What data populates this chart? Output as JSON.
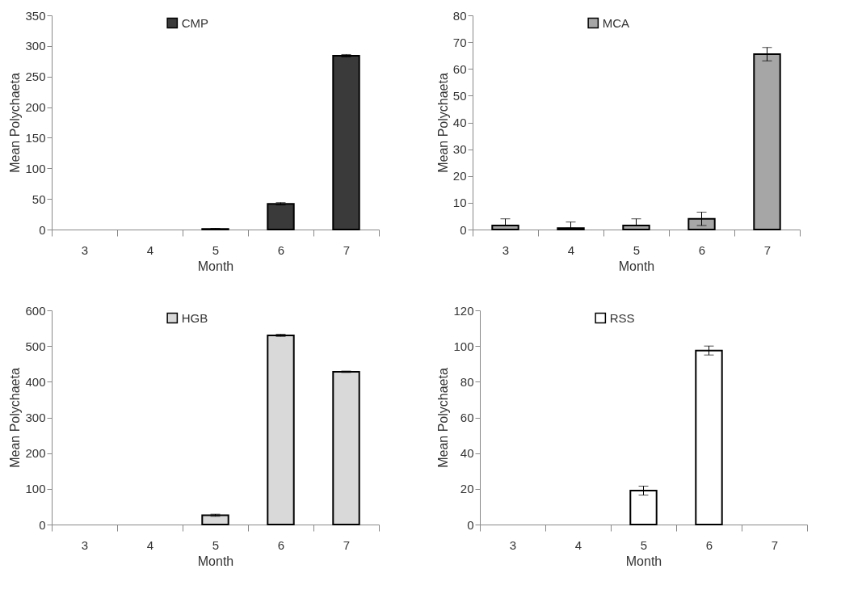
{
  "chart_data": [
    {
      "type": "bar",
      "xlabel": "Month",
      "ylabel": "Mean Polychaeta",
      "categories": [
        "3",
        "4",
        "5",
        "6",
        "7"
      ],
      "series": [
        {
          "name": "CMP",
          "color": "#3a3a3a",
          "values": [
            0,
            0,
            1,
            42,
            284
          ],
          "errors": [
            null,
            null,
            1,
            2,
            2
          ]
        }
      ],
      "ylim": [
        0,
        350
      ],
      "yticks": [
        0,
        50,
        100,
        150,
        200,
        250,
        300,
        350
      ],
      "legend": "top",
      "grid": false
    },
    {
      "type": "bar",
      "xlabel": "Month",
      "ylabel": "Mean Polychaeta",
      "categories": [
        "3",
        "4",
        "5",
        "6",
        "7"
      ],
      "series": [
        {
          "name": "MCA",
          "color": "#a6a6a6",
          "values": [
            1.5,
            0.5,
            1.5,
            4,
            65.5
          ],
          "errors": [
            [
              1.5,
              4
            ],
            [
              0.5,
              2.8
            ],
            [
              1.5,
              4
            ],
            2.5,
            2.5
          ]
        }
      ],
      "ylim": [
        0,
        80
      ],
      "yticks": [
        0,
        10,
        20,
        30,
        40,
        50,
        60,
        70,
        80
      ],
      "legend": "top",
      "grid": false
    },
    {
      "type": "bar",
      "xlabel": "Month",
      "ylabel": "Mean Polychaeta",
      "categories": [
        "3",
        "4",
        "5",
        "6",
        "7"
      ],
      "series": [
        {
          "name": "HGB",
          "color": "#d9d9d9",
          "values": [
            0,
            0,
            26,
            530,
            428
          ],
          "errors": [
            null,
            null,
            3,
            3,
            2
          ]
        }
      ],
      "ylim": [
        0,
        600
      ],
      "yticks": [
        0,
        100,
        200,
        300,
        400,
        500,
        600
      ],
      "legend": "top",
      "grid": false
    },
    {
      "type": "bar",
      "xlabel": "Month",
      "ylabel": "Mean Polychaeta",
      "categories": [
        "3",
        "4",
        "5",
        "6",
        "7"
      ],
      "series": [
        {
          "name": "RSS",
          "color": "#ffffff",
          "values": [
            0,
            0,
            19,
            97.5,
            0
          ],
          "errors": [
            null,
            null,
            2.5,
            2.5,
            null
          ]
        }
      ],
      "ylim": [
        0,
        120
      ],
      "yticks": [
        0,
        20,
        40,
        60,
        80,
        100,
        120
      ],
      "legend": "top",
      "grid": false
    }
  ]
}
